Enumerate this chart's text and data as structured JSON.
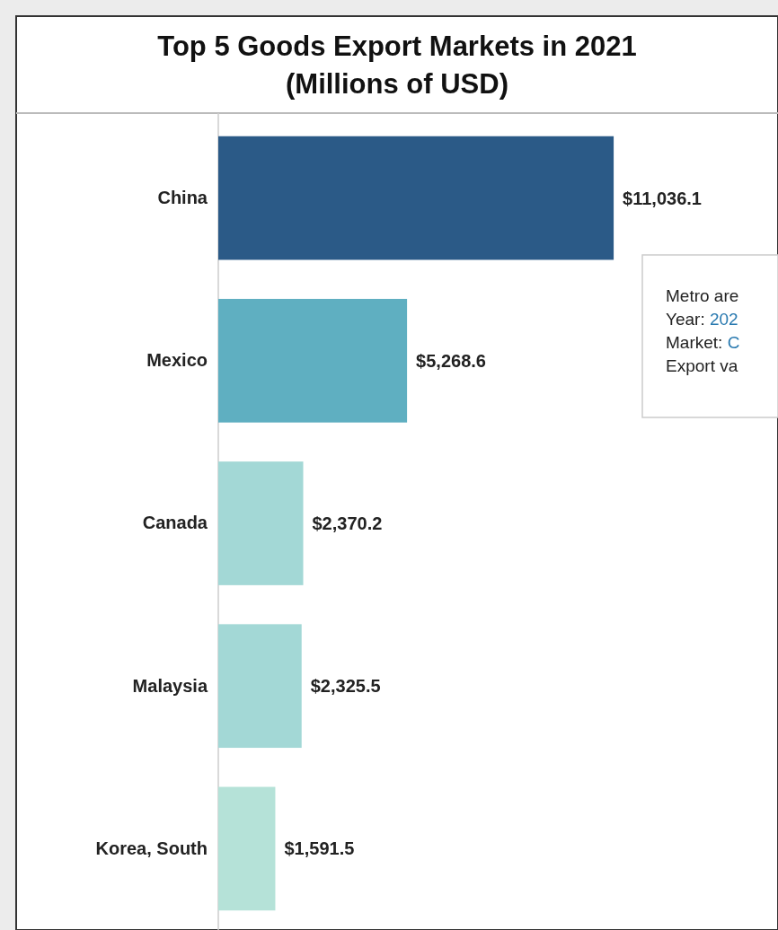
{
  "chart_data": {
    "type": "bar",
    "orientation": "horizontal",
    "title": "Top 5 Goods Export Markets in 2021",
    "subtitle": "(Millions of USD)",
    "categories": [
      "China",
      "Mexico",
      "Canada",
      "Malaysia",
      "Korea, South"
    ],
    "values": [
      11036.1,
      5268.6,
      2370.2,
      2325.5,
      1591.5
    ],
    "colors": [
      "#2b5a87",
      "#5fafc1",
      "#a3d8d6",
      "#a3d8d6",
      "#b5e2d8"
    ],
    "value_labels": [
      "$11,036.1",
      "$5,268.6",
      "$2,370.2",
      "$2,325.5",
      "$1,591.5"
    ],
    "annotations": [
      "Metro are",
      "Year: 202",
      "Market: C",
      "Export va"
    ]
  }
}
